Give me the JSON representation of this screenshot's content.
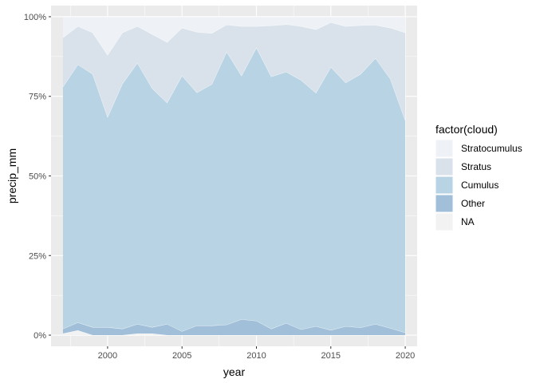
{
  "chart_data": {
    "type": "area",
    "stacking": "fill",
    "xlabel": "year",
    "ylabel": "precip_mm",
    "xlim": [
      1996.2,
      2020.8
    ],
    "ylim": [
      -0.035,
      1.035
    ],
    "x_ticks": [
      2000,
      2005,
      2010,
      2015,
      2020
    ],
    "x_tick_labels": [
      "2000",
      "2005",
      "2010",
      "2015",
      "2020"
    ],
    "y_ticks": [
      0,
      0.25,
      0.5,
      0.75,
      1.0
    ],
    "y_tick_labels": [
      "0%",
      "25%",
      "50%",
      "75%",
      "100%"
    ],
    "grid": true,
    "panel_background": "#ebebeb",
    "legend": {
      "title": "factor(cloud)",
      "position": "right",
      "entries": [
        "Stratocumulus",
        "Stratus",
        "Cumulus",
        "Other",
        "NA"
      ]
    },
    "x": [
      1997,
      1998,
      1999,
      2000,
      2001,
      2002,
      2003,
      2004,
      2005,
      2006,
      2007,
      2008,
      2009,
      2010,
      2011,
      2012,
      2013,
      2014,
      2015,
      2016,
      2017,
      2018,
      2019,
      2020
    ],
    "series": [
      {
        "name": "NA",
        "color": "#f2f2f2",
        "values": [
          0.005,
          0.015,
          0.0,
          0.0,
          0.0,
          0.005,
          0.005,
          0.0,
          0.0,
          0.0,
          0.0,
          0.0,
          0.0,
          0.0,
          0.0,
          0.0,
          0.0,
          0.0,
          0.0,
          0.0,
          0.0,
          0.0,
          0.0,
          0.0
        ]
      },
      {
        "name": "Other",
        "color": "#a2bfd9",
        "values": [
          0.015,
          0.025,
          0.025,
          0.025,
          0.02,
          0.03,
          0.02,
          0.035,
          0.012,
          0.03,
          0.03,
          0.033,
          0.05,
          0.045,
          0.02,
          0.038,
          0.018,
          0.028,
          0.016,
          0.028,
          0.024,
          0.035,
          0.022,
          0.008
        ]
      },
      {
        "name": "Cumulus",
        "color": "#b8d3e3",
        "values": [
          0.76,
          0.81,
          0.795,
          0.66,
          0.77,
          0.82,
          0.75,
          0.695,
          0.803,
          0.732,
          0.758,
          0.857,
          0.765,
          0.858,
          0.792,
          0.789,
          0.783,
          0.733,
          0.826,
          0.765,
          0.796,
          0.835,
          0.783,
          0.667
        ]
      },
      {
        "name": "Stratus",
        "color": "#d9e2ea",
        "values": [
          0.155,
          0.12,
          0.13,
          0.195,
          0.16,
          0.115,
          0.17,
          0.19,
          0.15,
          0.19,
          0.16,
          0.085,
          0.155,
          0.067,
          0.16,
          0.149,
          0.169,
          0.199,
          0.14,
          0.177,
          0.153,
          0.104,
          0.16,
          0.275
        ]
      },
      {
        "name": "Stratocumulus",
        "color": "#eef2f7",
        "values": [
          0.065,
          0.03,
          0.05,
          0.12,
          0.05,
          0.03,
          0.055,
          0.08,
          0.035,
          0.048,
          0.052,
          0.025,
          0.03,
          0.03,
          0.028,
          0.024,
          0.03,
          0.04,
          0.018,
          0.03,
          0.027,
          0.026,
          0.035,
          0.05
        ]
      }
    ]
  }
}
